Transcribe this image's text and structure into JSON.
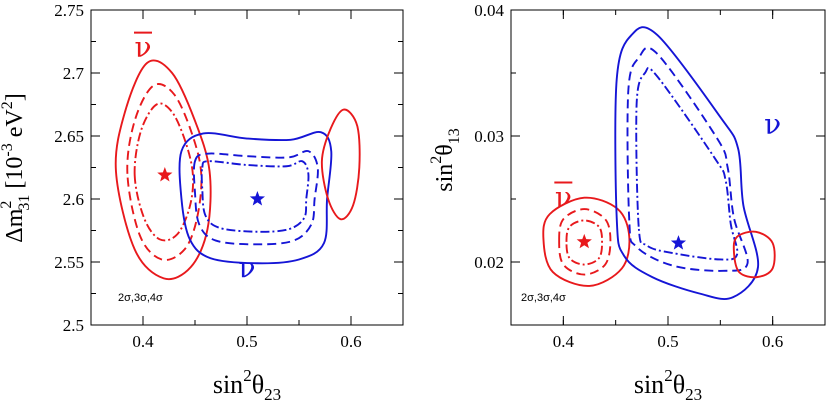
{
  "chart_data": [
    {
      "type": "contour",
      "title": "",
      "xlabel": "sin²θ₂₃",
      "xlabel_parts": {
        "base": "sin",
        "sup": "2",
        "sym": "θ",
        "sub": "23"
      },
      "ylabel_parts": {
        "delta": "Δm",
        "sup": "2",
        "sub": "31",
        "unit": "[10",
        "exp": "-3",
        "unit2": " eV",
        "unit2sup": "2",
        "close": "]"
      },
      "xlim": [
        0.35,
        0.65
      ],
      "ylim": [
        2.5,
        2.75
      ],
      "xticks": [
        0.4,
        0.5,
        0.6
      ],
      "xtick_labels": [
        "0.4",
        "0.5",
        "0.6"
      ],
      "yticks": [
        2.5,
        2.55,
        2.6,
        2.65,
        2.7,
        2.75
      ],
      "ytick_labels": [
        "2.5",
        "2.55",
        "2.6",
        "2.65",
        "2.7",
        "2.75"
      ],
      "annotation": "2σ,3σ,4σ",
      "series": [
        {
          "name": "ν̄",
          "label": "ν",
          "bar": true,
          "color": "#e8191c",
          "label_pos": [
            0.4,
            2.713
          ],
          "best_fit": [
            0.421,
            2.619
          ],
          "contours": [
            {
              "level": "2σ",
              "style": "dashdot",
              "points": [
                [
                  0.392,
                  2.619
                ],
                [
                  0.398,
                  2.654
                ],
                [
                  0.413,
                  2.675
                ],
                [
                  0.428,
                  2.669
                ],
                [
                  0.441,
                  2.645
                ],
                [
                  0.448,
                  2.619
                ],
                [
                  0.445,
                  2.594
                ],
                [
                  0.433,
                  2.572
                ],
                [
                  0.416,
                  2.568
                ],
                [
                  0.401,
                  2.585
                ],
                [
                  0.392,
                  2.619
                ]
              ]
            },
            {
              "level": "3σ",
              "style": "dashed",
              "points": [
                [
                  0.385,
                  2.62
                ],
                [
                  0.392,
                  2.662
                ],
                [
                  0.41,
                  2.69
                ],
                [
                  0.43,
                  2.683
                ],
                [
                  0.447,
                  2.652
                ],
                [
                  0.456,
                  2.62
                ],
                [
                  0.452,
                  2.585
                ],
                [
                  0.44,
                  2.56
                ],
                [
                  0.418,
                  2.552
                ],
                [
                  0.397,
                  2.571
                ],
                [
                  0.385,
                  2.62
                ]
              ]
            },
            {
              "level": "4σ",
              "style": "solid",
              "points": [
                [
                  0.374,
                  2.622
                ],
                [
                  0.383,
                  2.67
                ],
                [
                  0.404,
                  2.708
                ],
                [
                  0.428,
                  2.7
                ],
                [
                  0.45,
                  2.662
                ],
                [
                  0.464,
                  2.622
                ],
                [
                  0.462,
                  2.576
                ],
                [
                  0.446,
                  2.546
                ],
                [
                  0.42,
                  2.537
                ],
                [
                  0.392,
                  2.56
                ],
                [
                  0.374,
                  2.622
                ]
              ]
            }
          ]
        },
        {
          "name": "ν",
          "label": "ν",
          "bar": false,
          "color": "#1515d6",
          "label_pos": [
            0.5,
            2.538
          ],
          "best_fit": [
            0.51,
            2.6
          ],
          "contours": [
            {
              "level": "2σ",
              "style": "dashdot",
              "points": [
                [
                  0.457,
                  2.625
                ],
                [
                  0.463,
                  2.63
                ],
                [
                  0.5,
                  2.627
                ],
                [
                  0.538,
                  2.626
                ],
                [
                  0.553,
                  2.63
                ],
                [
                  0.559,
                  2.62
                ],
                [
                  0.557,
                  2.6
                ],
                [
                  0.555,
                  2.585
                ],
                [
                  0.54,
                  2.576
                ],
                [
                  0.51,
                  2.574
                ],
                [
                  0.474,
                  2.577
                ],
                [
                  0.46,
                  2.587
                ],
                [
                  0.457,
                  2.608
                ],
                [
                  0.457,
                  2.625
                ]
              ]
            },
            {
              "level": "3σ",
              "style": "dashed",
              "points": [
                [
                  0.45,
                  2.63
                ],
                [
                  0.462,
                  2.636
                ],
                [
                  0.5,
                  2.634
                ],
                [
                  0.54,
                  2.633
                ],
                [
                  0.559,
                  2.638
                ],
                [
                  0.568,
                  2.625
                ],
                [
                  0.565,
                  2.6
                ],
                [
                  0.562,
                  2.58
                ],
                [
                  0.545,
                  2.567
                ],
                [
                  0.51,
                  2.564
                ],
                [
                  0.47,
                  2.567
                ],
                [
                  0.454,
                  2.58
                ],
                [
                  0.45,
                  2.605
                ],
                [
                  0.45,
                  2.63
                ]
              ]
            },
            {
              "level": "4σ",
              "style": "solid",
              "points": [
                [
                  0.437,
                  2.638
                ],
                [
                  0.458,
                  2.652
                ],
                [
                  0.5,
                  2.648
                ],
                [
                  0.542,
                  2.647
                ],
                [
                  0.571,
                  2.653
                ],
                [
                  0.581,
                  2.638
                ],
                [
                  0.577,
                  2.6
                ],
                [
                  0.574,
                  2.565
                ],
                [
                  0.55,
                  2.552
                ],
                [
                  0.51,
                  2.549
                ],
                [
                  0.465,
                  2.553
                ],
                [
                  0.445,
                  2.568
                ],
                [
                  0.437,
                  2.6
                ],
                [
                  0.437,
                  2.638
                ]
              ]
            },
            {
              "level": "ν̄ 4σ (upper octant)",
              "style": "solid",
              "color": "#e8191c",
              "points": [
                [
                  0.572,
                  2.63
                ],
                [
                  0.58,
                  2.655
                ],
                [
                  0.593,
                  2.671
                ],
                [
                  0.606,
                  2.658
                ],
                [
                  0.608,
                  2.625
                ],
                [
                  0.602,
                  2.595
                ],
                [
                  0.59,
                  2.584
                ],
                [
                  0.578,
                  2.6
                ],
                [
                  0.572,
                  2.63
                ]
              ]
            }
          ]
        }
      ]
    },
    {
      "type": "contour",
      "title": "",
      "xlabel": "sin²θ₂₃",
      "xlabel_parts": {
        "base": "sin",
        "sup": "2",
        "sym": "θ",
        "sub": "23"
      },
      "ylabel_parts": {
        "base": "sin",
        "sup": "2",
        "sym": "θ",
        "sub": "13"
      },
      "xlim": [
        0.35,
        0.65
      ],
      "ylim": [
        0.015,
        0.04
      ],
      "xticks": [
        0.4,
        0.5,
        0.6
      ],
      "xtick_labels": [
        "0.4",
        "0.5",
        "0.6"
      ],
      "yticks": [
        0.02,
        0.03,
        0.04
      ],
      "ytick_labels": [
        "0.02",
        "0.03",
        "0.04"
      ],
      "annotation": "2σ,3σ,4σ",
      "series": [
        {
          "name": "ν̄",
          "label": "ν",
          "bar": true,
          "color": "#e8191c",
          "label_pos": [
            0.4,
            0.0244
          ],
          "best_fit": [
            0.42,
            0.0216
          ],
          "contours": [
            {
              "level": "2σ",
              "style": "dashdot",
              "points": [
                [
                  0.403,
                  0.0216
                ],
                [
                  0.406,
                  0.0228
                ],
                [
                  0.42,
                  0.0233
                ],
                [
                  0.434,
                  0.0228
                ],
                [
                  0.437,
                  0.0216
                ],
                [
                  0.434,
                  0.0203
                ],
                [
                  0.42,
                  0.0198
                ],
                [
                  0.406,
                  0.0203
                ],
                [
                  0.403,
                  0.0216
                ]
              ]
            },
            {
              "level": "3σ",
              "style": "dashed",
              "points": [
                [
                  0.396,
                  0.0217
                ],
                [
                  0.4,
                  0.0234
                ],
                [
                  0.42,
                  0.0242
                ],
                [
                  0.44,
                  0.0234
                ],
                [
                  0.445,
                  0.0217
                ],
                [
                  0.44,
                  0.0198
                ],
                [
                  0.42,
                  0.019
                ],
                [
                  0.4,
                  0.0198
                ],
                [
                  0.396,
                  0.0217
                ]
              ]
            },
            {
              "level": "4σ",
              "style": "solid",
              "points": [
                [
                  0.381,
                  0.0218
                ],
                [
                  0.387,
                  0.0238
                ],
                [
                  0.42,
                  0.0251
                ],
                [
                  0.452,
                  0.0242
                ],
                [
                  0.463,
                  0.022
                ],
                [
                  0.456,
                  0.0195
                ],
                [
                  0.425,
                  0.0181
                ],
                [
                  0.39,
                  0.0192
                ],
                [
                  0.381,
                  0.0218
                ]
              ]
            }
          ]
        },
        {
          "name": "ν",
          "label": "ν",
          "bar": false,
          "color": "#1515d6",
          "label_pos": [
            0.6,
            0.0302
          ],
          "best_fit": [
            0.51,
            0.0215
          ],
          "contours": [
            {
              "level": "2σ",
              "style": "dashdot",
              "points": [
                [
                  0.472,
                  0.0228
                ],
                [
                  0.47,
                  0.0325
                ],
                [
                  0.478,
                  0.035
                ],
                [
                  0.49,
                  0.0347
                ],
                [
                  0.545,
                  0.0282
                ],
                [
                  0.555,
                  0.0265
                ],
                [
                  0.56,
                  0.023
                ],
                [
                  0.566,
                  0.0206
                ],
                [
                  0.55,
                  0.0202
                ],
                [
                  0.505,
                  0.0207
                ],
                [
                  0.48,
                  0.0213
                ],
                [
                  0.472,
                  0.0228
                ]
              ]
            },
            {
              "level": "3σ",
              "style": "dashed",
              "points": [
                [
                  0.463,
                  0.0233
                ],
                [
                  0.462,
                  0.0335
                ],
                [
                  0.472,
                  0.0362
                ],
                [
                  0.49,
                  0.0365
                ],
                [
                  0.547,
                  0.0298
                ],
                [
                  0.557,
                  0.0275
                ],
                [
                  0.563,
                  0.0235
                ],
                [
                  0.576,
                  0.0199
                ],
                [
                  0.553,
                  0.0193
                ],
                [
                  0.505,
                  0.0197
                ],
                [
                  0.47,
                  0.0212
                ],
                [
                  0.463,
                  0.0233
                ]
              ]
            },
            {
              "level": "4σ",
              "style": "solid",
              "points": [
                [
                  0.451,
                  0.0235
                ],
                [
                  0.451,
                  0.0345
                ],
                [
                  0.465,
                  0.038
                ],
                [
                  0.49,
                  0.038
                ],
                [
                  0.55,
                  0.0315
                ],
                [
                  0.567,
                  0.029
                ],
                [
                  0.572,
                  0.0245
                ],
                [
                  0.586,
                  0.0196
                ],
                [
                  0.562,
                  0.0172
                ],
                [
                  0.53,
                  0.0175
                ],
                [
                  0.485,
                  0.0188
                ],
                [
                  0.458,
                  0.0205
                ],
                [
                  0.451,
                  0.0235
                ]
              ]
            },
            {
              "level": "ν̄ 4σ (upper octant)",
              "style": "solid",
              "color": "#e8191c",
              "points": [
                [
                  0.563,
                  0.0208
                ],
                [
                  0.566,
                  0.022
                ],
                [
                  0.584,
                  0.0224
                ],
                [
                  0.6,
                  0.0215
                ],
                [
                  0.6,
                  0.0195
                ],
                [
                  0.585,
                  0.0188
                ],
                [
                  0.568,
                  0.0192
                ],
                [
                  0.563,
                  0.0208
                ]
              ]
            }
          ]
        }
      ]
    }
  ]
}
